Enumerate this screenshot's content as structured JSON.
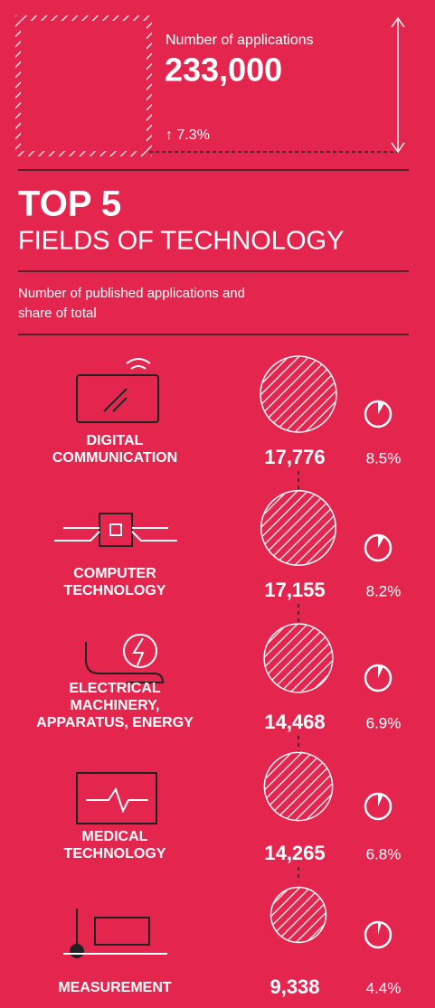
{
  "header": {
    "label": "Number of applications",
    "total": "233,000",
    "change": "↑ 7.3%"
  },
  "title": "TOP 5",
  "subtitle": "FIELDS OF TECHNOLOGY",
  "description": [
    "Number of published applications and",
    "share of total"
  ],
  "fields": [
    {
      "name_lines": [
        "DIGITAL",
        "COMMUNICATION"
      ],
      "value": 17776,
      "value_label": "17,776",
      "share": 8.5,
      "share_label": "8.5%"
    },
    {
      "name_lines": [
        "COMPUTER",
        "TECHNOLOGY"
      ],
      "value": 17155,
      "value_label": "17,155",
      "share": 8.2,
      "share_label": "8.2%"
    },
    {
      "name_lines": [
        "ELECTRICAL",
        "MACHINERY,",
        "APPARATUS, ENERGY"
      ],
      "value": 14468,
      "value_label": "14,468",
      "share": 6.9,
      "share_label": "6.9%"
    },
    {
      "name_lines": [
        "MEDICAL",
        "TECHNOLOGY"
      ],
      "value": 14265,
      "value_label": "14,265",
      "share": 6.8,
      "share_label": "6.8%"
    },
    {
      "name_lines": [
        "MEASUREMENT"
      ],
      "value": 9338,
      "value_label": "9,338",
      "share": 4.4,
      "share_label": "4.4%"
    }
  ]
}
